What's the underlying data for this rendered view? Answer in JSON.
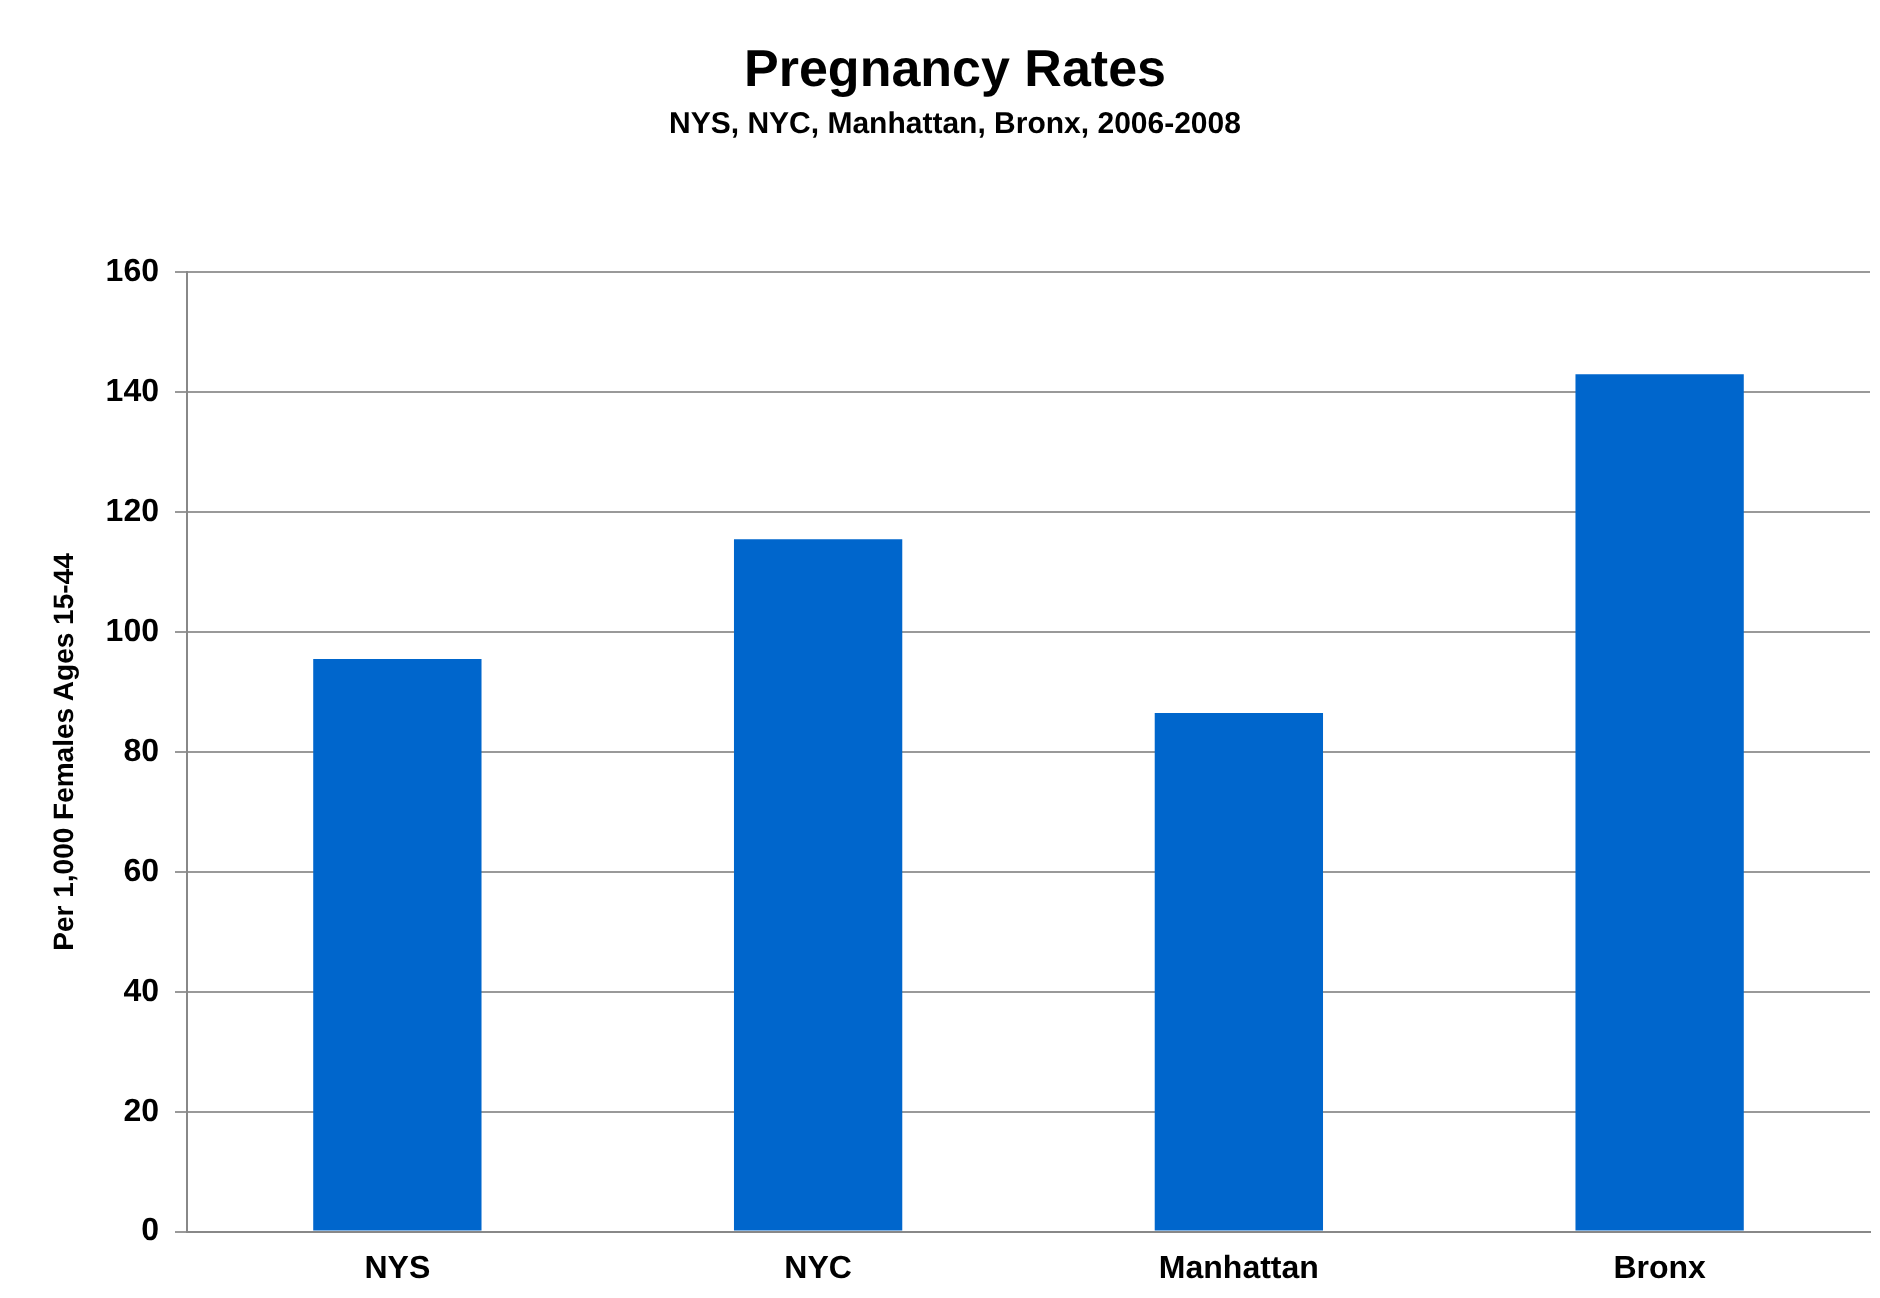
{
  "chart_data": {
    "type": "bar",
    "title": "Pregnancy Rates",
    "subtitle": "NYS, NYC, Manhattan, Bronx, 2006-2008",
    "ylabel": "Per 1,000 Females Ages 15-44",
    "categories": [
      "NYS",
      "NYC",
      "Manhattan",
      "Bronx"
    ],
    "values": [
      95.5,
      115.5,
      86.5,
      143
    ],
    "color": "#0066cc",
    "ylim": [
      0,
      160
    ],
    "yticks": [
      0,
      20,
      40,
      60,
      80,
      100,
      120,
      140,
      160
    ],
    "grid": "y"
  }
}
